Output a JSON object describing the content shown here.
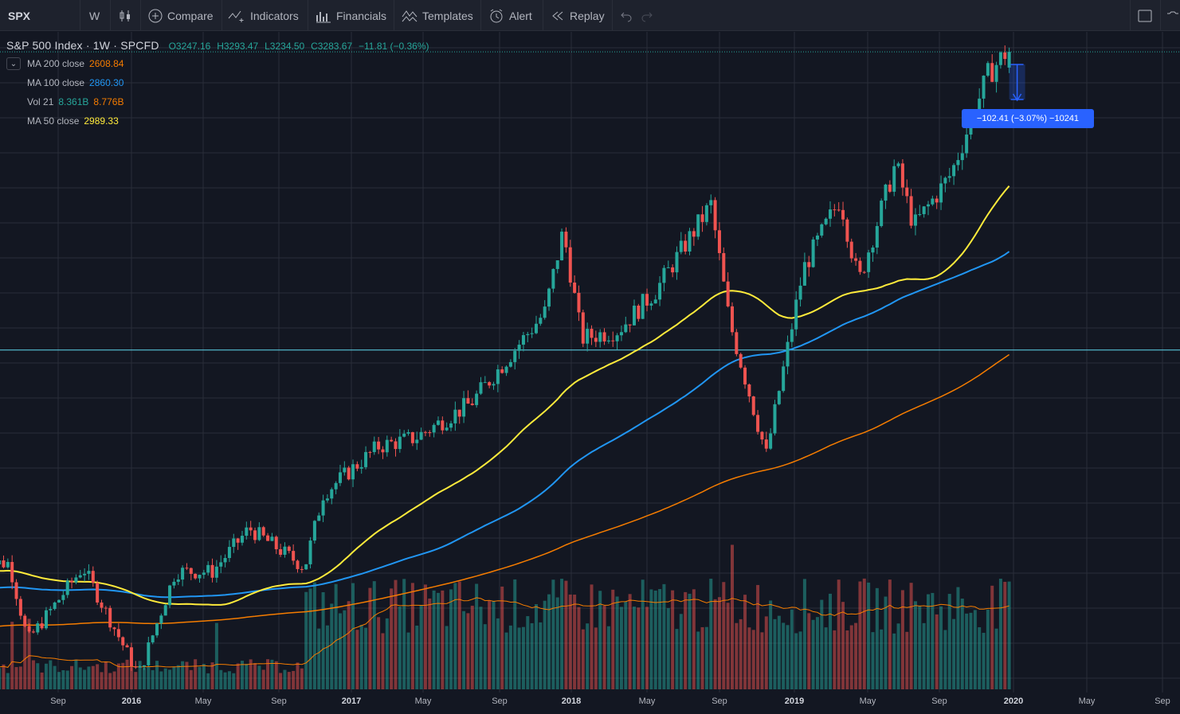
{
  "toolbar": {
    "symbol": "SPX",
    "interval": "W",
    "compare": "Compare",
    "indicators": "Indicators",
    "financials": "Financials",
    "templates": "Templates",
    "alert": "Alert",
    "replay": "Replay"
  },
  "legend": {
    "title": "S&P 500 Index · 1W · SPCFD",
    "open": "O3247.16",
    "high": "H3293.47",
    "low": "L3234.50",
    "close": "C3283.67",
    "change": "−11.81 (−0.36%)",
    "indicators": [
      {
        "label": "MA 200 close",
        "value": "2608.84",
        "color": "#f57c00"
      },
      {
        "label": "MA 100 close",
        "value": "2860.30",
        "color": "#2196f3"
      },
      {
        "label": "Vol 21",
        "value": "8.361B",
        "value2": "8.776B",
        "color": "#26a69a",
        "color2": "#f57c00"
      },
      {
        "label": "MA 50 close",
        "value": "2989.33",
        "color": "#ffeb3b"
      }
    ]
  },
  "measure_label": "−102.41 (−3.07%) −10241",
  "colors": {
    "up": "#26a69a",
    "down": "#ef5350",
    "ma50": "#ffeb3b",
    "ma100": "#2196f3",
    "ma200": "#f57c00",
    "volume_ma": "#f57c00",
    "background": "#131722",
    "grid": "#2a2e39",
    "measure": "#2962ff",
    "hline": "#5fd8ee"
  },
  "chart_data": {
    "type": "candlestick",
    "symbol": "S&P 500 Index",
    "interval": "1W",
    "x_axis_labels": [
      "Sep",
      "2016",
      "May",
      "Sep",
      "2017",
      "May",
      "Sep",
      "2018",
      "May",
      "Sep",
      "2019",
      "May",
      "Sep",
      "2020",
      "May",
      "Sep"
    ],
    "y_range": [
      1800,
      3330
    ],
    "grid": true,
    "horizontal_line": 2593,
    "price_anchors": [
      {
        "date": "2015-07",
        "close": 2100
      },
      {
        "date": "2015-08",
        "close": 1920
      },
      {
        "date": "2015-11",
        "close": 2090
      },
      {
        "date": "2016-02",
        "close": 1840
      },
      {
        "date": "2016-04",
        "close": 2080
      },
      {
        "date": "2016-06",
        "close": 2080
      },
      {
        "date": "2016-08",
        "close": 2180
      },
      {
        "date": "2016-11",
        "close": 2090
      },
      {
        "date": "2016-12",
        "close": 2260
      },
      {
        "date": "2017-03",
        "close": 2370
      },
      {
        "date": "2017-05",
        "close": 2390
      },
      {
        "date": "2017-08",
        "close": 2470
      },
      {
        "date": "2017-12",
        "close": 2680
      },
      {
        "date": "2018-01",
        "close": 2870
      },
      {
        "date": "2018-02",
        "close": 2620
      },
      {
        "date": "2018-04",
        "close": 2640
      },
      {
        "date": "2018-06",
        "close": 2730
      },
      {
        "date": "2018-09",
        "close": 2930
      },
      {
        "date": "2018-10",
        "close": 2660
      },
      {
        "date": "2018-12",
        "close": 2350
      },
      {
        "date": "2019-02",
        "close": 2780
      },
      {
        "date": "2019-04",
        "close": 2945
      },
      {
        "date": "2019-05",
        "close": 2750
      },
      {
        "date": "2019-07",
        "close": 3025
      },
      {
        "date": "2019-08",
        "close": 2880
      },
      {
        "date": "2019-10",
        "close": 3000
      },
      {
        "date": "2019-12",
        "close": 3230
      },
      {
        "date": "2020-01",
        "close": 3283.67
      }
    ],
    "moving_averages": [
      {
        "name": "MA 50 close",
        "last": 2989.33
      },
      {
        "name": "MA 100 close",
        "last": 2860.3
      },
      {
        "name": "MA 200 close",
        "last": 2608.84
      }
    ],
    "volume": {
      "name": "Vol 21",
      "last": "8.361B",
      "ma": "8.776B"
    }
  }
}
